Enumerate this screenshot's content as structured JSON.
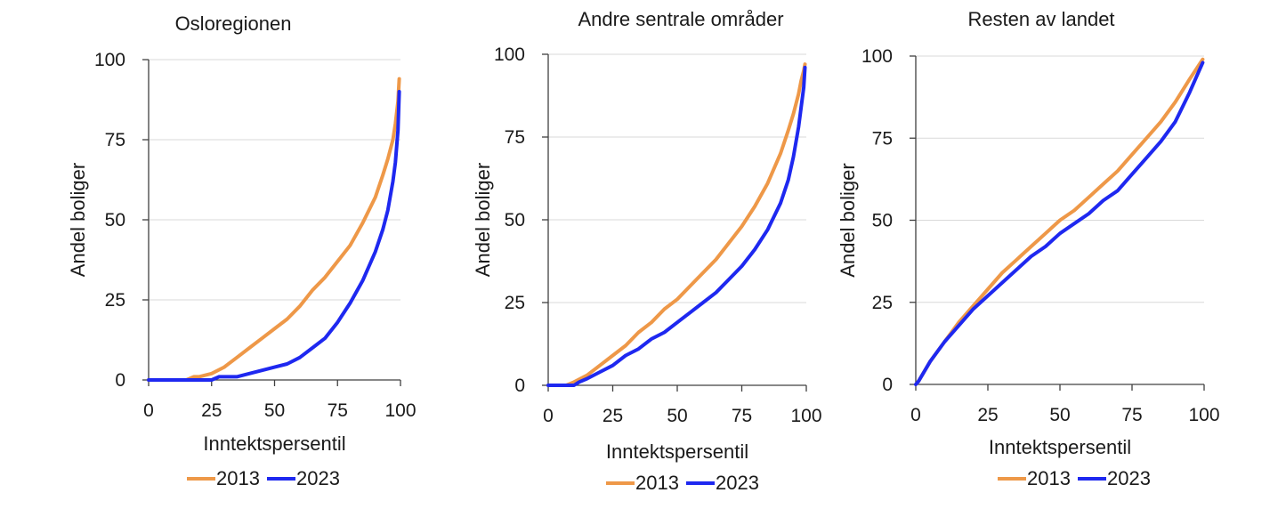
{
  "colors": {
    "series_2013": "#ee9848",
    "series_2023": "#1e28f0",
    "grid": "#d9d9d9",
    "axis": "#404040"
  },
  "chart_data": [
    {
      "type": "line",
      "title": "Osloregionen",
      "xlabel": "Inntektspersentil",
      "ylabel": "Andel boliger",
      "xlim": [
        0,
        100
      ],
      "ylim": [
        0,
        100
      ],
      "xticks": [
        "0",
        "25",
        "50",
        "75",
        "100"
      ],
      "yticks": [
        "0",
        "25",
        "50",
        "75",
        "100"
      ],
      "grid": "horizontal",
      "legend": "bottom",
      "series": [
        {
          "name": "2013",
          "color": "#ee9848",
          "x": [
            0,
            10,
            15,
            18,
            20,
            25,
            30,
            35,
            40,
            45,
            50,
            55,
            60,
            65,
            70,
            75,
            80,
            85,
            90,
            93,
            95,
            97,
            98,
            99,
            99.5
          ],
          "y": [
            0,
            0,
            0,
            1,
            1,
            2,
            4,
            7,
            10,
            13,
            16,
            19,
            23,
            28,
            32,
            37,
            42,
            49,
            57,
            64,
            69,
            75,
            80,
            87,
            94
          ]
        },
        {
          "name": "2023",
          "color": "#1e28f0",
          "x": [
            0,
            10,
            15,
            20,
            25,
            28,
            30,
            35,
            40,
            45,
            50,
            55,
            60,
            65,
            70,
            75,
            80,
            85,
            90,
            93,
            95,
            97,
            98,
            99,
            99.5
          ],
          "y": [
            0,
            0,
            0,
            0,
            0,
            1,
            1,
            1,
            2,
            3,
            4,
            5,
            7,
            10,
            13,
            18,
            24,
            31,
            40,
            47,
            53,
            62,
            68,
            78,
            90
          ]
        }
      ]
    },
    {
      "type": "line",
      "title": "Andre sentrale områder",
      "xlabel": "Inntektspersentil",
      "ylabel": "Andel boliger",
      "xlim": [
        0,
        100
      ],
      "ylim": [
        0,
        100
      ],
      "xticks": [
        "0",
        "25",
        "50",
        "75",
        "100"
      ],
      "yticks": [
        "0",
        "25",
        "50",
        "75",
        "100"
      ],
      "grid": "horizontal",
      "legend": "bottom",
      "series": [
        {
          "name": "2013",
          "color": "#ee9848",
          "x": [
            0,
            5,
            7,
            10,
            15,
            20,
            25,
            30,
            35,
            40,
            45,
            50,
            55,
            60,
            65,
            70,
            75,
            80,
            85,
            90,
            93,
            95,
            97,
            98,
            99,
            99.5
          ],
          "y": [
            0,
            0,
            0,
            1,
            3,
            6,
            9,
            12,
            16,
            19,
            23,
            26,
            30,
            34,
            38,
            43,
            48,
            54,
            61,
            70,
            77,
            82,
            88,
            92,
            95,
            97
          ]
        },
        {
          "name": "2023",
          "color": "#1e28f0",
          "x": [
            0,
            5,
            10,
            12,
            15,
            20,
            25,
            30,
            35,
            40,
            45,
            50,
            55,
            60,
            65,
            70,
            75,
            80,
            85,
            90,
            93,
            95,
            97,
            98,
            99,
            99.5
          ],
          "y": [
            0,
            0,
            0,
            1,
            2,
            4,
            6,
            9,
            11,
            14,
            16,
            19,
            22,
            25,
            28,
            32,
            36,
            41,
            47,
            55,
            62,
            69,
            78,
            84,
            90,
            96
          ]
        }
      ]
    },
    {
      "type": "line",
      "title": "Resten av landet",
      "xlabel": "Inntektspersentil",
      "ylabel": "Andel boliger",
      "xlim": [
        0,
        100
      ],
      "ylim": [
        0,
        100
      ],
      "xticks": [
        "0",
        "25",
        "50",
        "75",
        "100"
      ],
      "yticks": [
        "0",
        "25",
        "50",
        "75",
        "100"
      ],
      "grid": "horizontal",
      "legend": "bottom",
      "series": [
        {
          "name": "2013",
          "color": "#ee9848",
          "x": [
            0,
            1,
            3,
            5,
            10,
            15,
            20,
            25,
            30,
            35,
            40,
            45,
            50,
            55,
            60,
            65,
            70,
            75,
            80,
            85,
            90,
            95,
            98,
            99.5
          ],
          "y": [
            0,
            1,
            4,
            7,
            13,
            19,
            24,
            29,
            34,
            38,
            42,
            46,
            50,
            53,
            57,
            61,
            65,
            70,
            75,
            80,
            86,
            93,
            97,
            99
          ]
        },
        {
          "name": "2023",
          "color": "#1e28f0",
          "x": [
            0,
            1,
            3,
            5,
            10,
            15,
            20,
            25,
            30,
            35,
            40,
            45,
            50,
            55,
            60,
            65,
            70,
            75,
            80,
            85,
            90,
            95,
            98,
            99.5
          ],
          "y": [
            0,
            1,
            4,
            7,
            13,
            18,
            23,
            27,
            31,
            35,
            39,
            42,
            46,
            49,
            52,
            56,
            59,
            64,
            69,
            74,
            80,
            89,
            95,
            98
          ]
        }
      ]
    }
  ]
}
